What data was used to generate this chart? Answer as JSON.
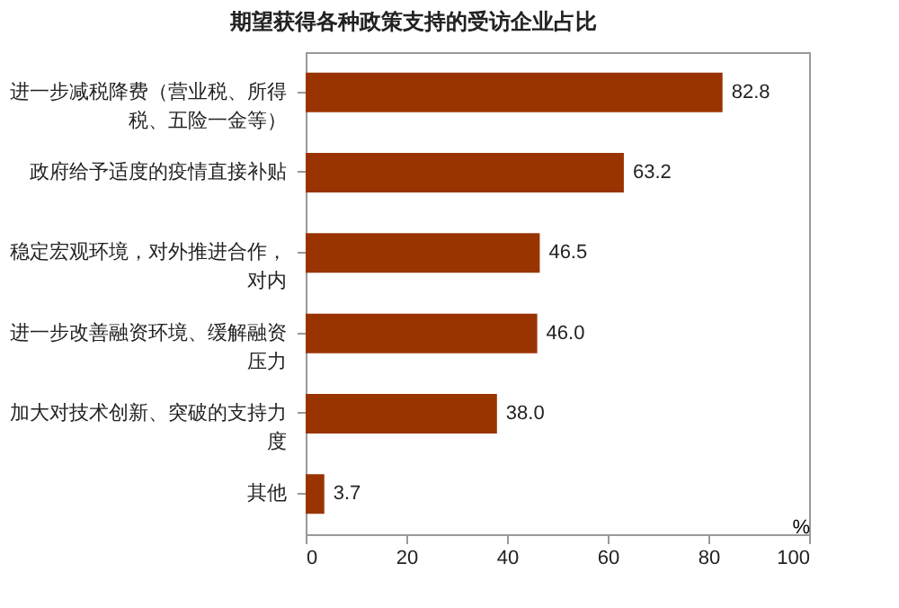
{
  "chart_data": {
    "type": "bar",
    "orientation": "horizontal",
    "title": "期望获得各种政策支持的受访企业占比",
    "xlabel": "%",
    "categories": [
      "进一步减税降费（营业税、所得税、五险一金等）",
      "政府给予适度的疫情直接补贴",
      "稳定宏观环境，对外推进合作，对内",
      "进一步改善融资环境、缓解融资压力",
      "加大对技术创新、突破的支持力度",
      "其他"
    ],
    "values": [
      82.8,
      63.2,
      46.5,
      46.0,
      38.0,
      3.7
    ],
    "color": "#993300",
    "xlim": [
      0,
      100
    ],
    "xticks": [
      0,
      20,
      40,
      60,
      80,
      100
    ],
    "value_labels": [
      "82.8",
      "63.2",
      "46.5",
      "46.0",
      "38.0",
      "3.7"
    ],
    "grid": false
  }
}
